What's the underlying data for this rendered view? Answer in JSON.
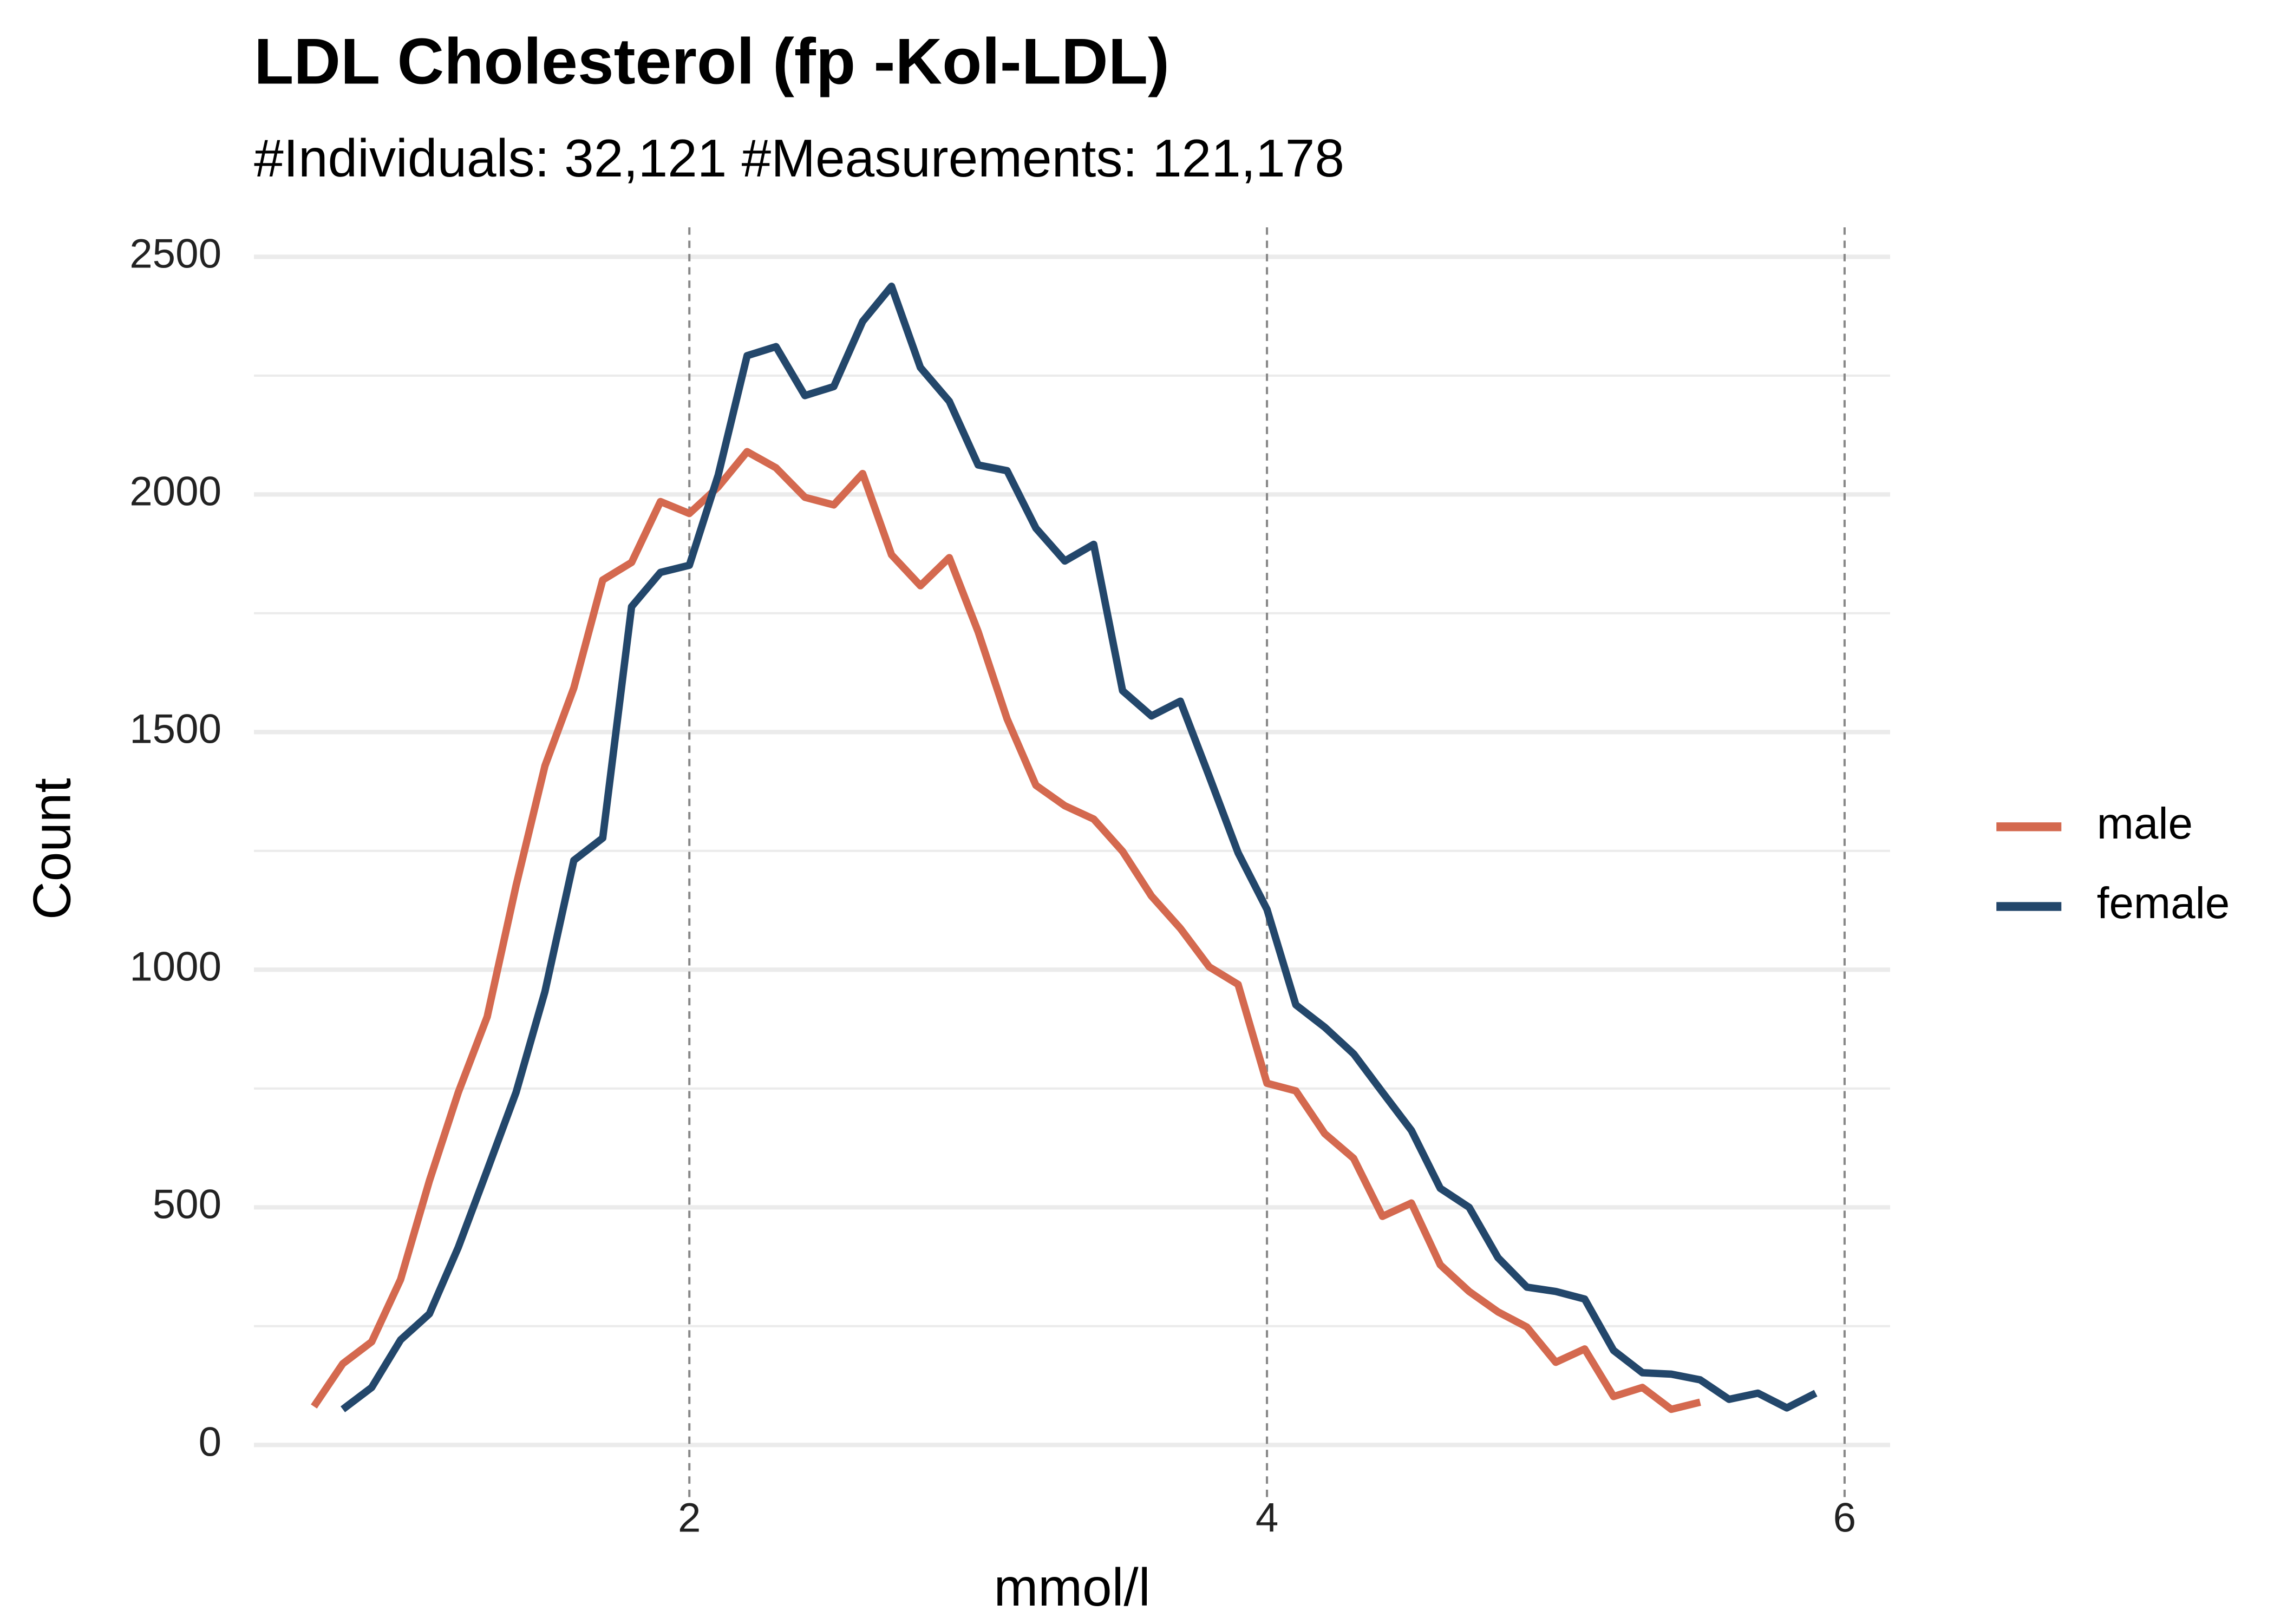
{
  "chart_data": {
    "type": "line",
    "title": "LDL Cholesterol (fp -Kol-LDL)",
    "subtitle": "#Individuals: 32,121 #Measurements: 121,178",
    "x_label": "mmol/l",
    "y_label": "Count",
    "xlim": [
      0.4925,
      6.1575
    ],
    "ylim": [
      -122,
      2562
    ],
    "xticks": [
      2,
      4,
      6
    ],
    "yticks": [
      0,
      500,
      1000,
      1500,
      2000,
      2500
    ],
    "y_minor_ticks": [
      250,
      750,
      1250,
      1750,
      2250
    ],
    "grid": true,
    "x_grid_dashed": true,
    "legend": "right",
    "series": [
      {
        "name": "male",
        "color": "#d4694f",
        "x": [
          0.7,
          0.8,
          0.9,
          1.0,
          1.1,
          1.2,
          1.3,
          1.4,
          1.5,
          1.6,
          1.7,
          1.8,
          1.9,
          2.0,
          2.1,
          2.2,
          2.3,
          2.4,
          2.5,
          2.6,
          2.7,
          2.8,
          2.9,
          3.0,
          3.1,
          3.2,
          3.3,
          3.4,
          3.5,
          3.6,
          3.7,
          3.8,
          3.9,
          4.0,
          4.1,
          4.2,
          4.3,
          4.4,
          4.5,
          4.6,
          4.7,
          4.8,
          4.9,
          5.0,
          5.1,
          5.2,
          5.3,
          5.4,
          5.5
        ],
        "values": [
          81,
          171,
          217,
          348,
          556,
          742,
          901,
          1177,
          1429,
          1593,
          1820,
          1857,
          1985,
          1960,
          2016,
          2090,
          2056,
          1994,
          1978,
          2044,
          1873,
          1808,
          1867,
          1711,
          1528,
          1388,
          1345,
          1317,
          1249,
          1155,
          1087,
          1006,
          969,
          761,
          745,
          655,
          603,
          481,
          509,
          379,
          323,
          280,
          248,
          174,
          202,
          102,
          121,
          75,
          90
        ]
      },
      {
        "name": "female",
        "color": "#23476b",
        "x": [
          0.8,
          0.9,
          1.0,
          1.1,
          1.2,
          1.3,
          1.4,
          1.5,
          1.6,
          1.7,
          1.8,
          1.9,
          2.0,
          2.1,
          2.2,
          2.3,
          2.4,
          2.5,
          2.6,
          2.7,
          2.8,
          2.9,
          3.0,
          3.1,
          3.2,
          3.3,
          3.4,
          3.5,
          3.6,
          3.7,
          3.8,
          3.9,
          4.0,
          4.1,
          4.2,
          4.3,
          4.4,
          4.5,
          4.6,
          4.7,
          4.8,
          4.9,
          5.0,
          5.1,
          5.2,
          5.3,
          5.4,
          5.5,
          5.6,
          5.7,
          5.8,
          5.9
        ],
        "values": [
          75,
          121,
          221,
          276,
          416,
          578,
          742,
          954,
          1230,
          1277,
          1764,
          1836,
          1851,
          2041,
          2292,
          2311,
          2208,
          2227,
          2364,
          2438,
          2267,
          2196,
          2062,
          2050,
          1929,
          1860,
          1895,
          1587,
          1534,
          1565,
          1407,
          1246,
          1127,
          926,
          879,
          823,
          742,
          662,
          540,
          500,
          394,
          332,
          323,
          307,
          199,
          152,
          149,
          137,
          96,
          109,
          78,
          109
        ]
      }
    ]
  }
}
